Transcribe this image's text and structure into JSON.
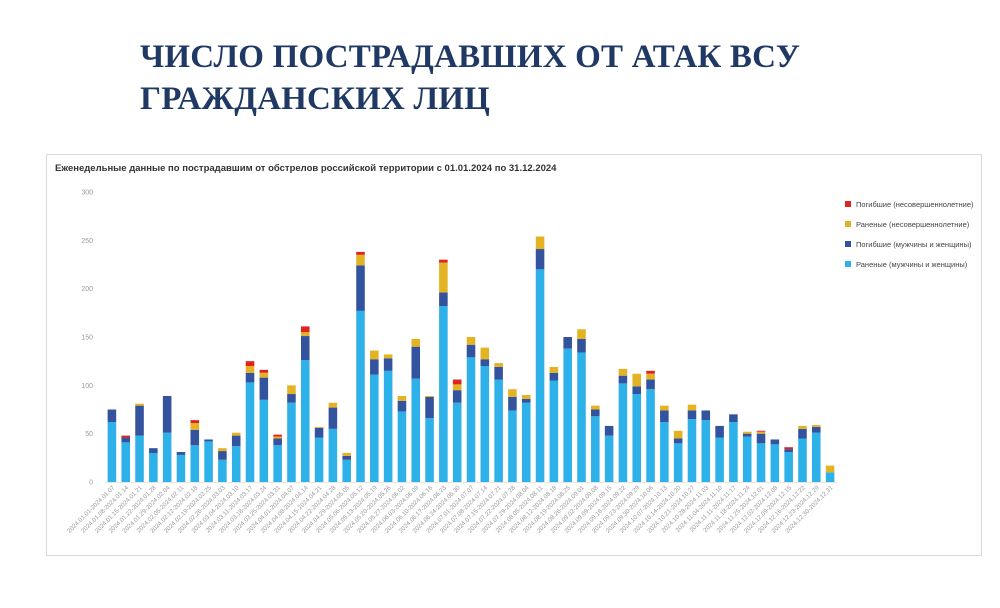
{
  "slide": {
    "title_line1": "ЧИСЛО ПОСТРАДАВШИХ ОТ АТАК ВСУ",
    "title_line2": "ГРАЖДАНСКИХ ЛИЦ"
  },
  "colors": {
    "title": "#1f3864",
    "wounded_adult": "#2eb1e8",
    "killed_adult": "#34539e",
    "wounded_minor": "#e3b324",
    "killed_minor": "#e02424"
  },
  "chart_data": {
    "type": "bar",
    "stacked": true,
    "title": "Еженедельные данные по пострадавшим от обстрелов российской территории с 01.01.2024 по 31.12.2024",
    "xlabel": "",
    "ylabel": "",
    "ylim": [
      0,
      300
    ],
    "yticks": [
      0,
      50,
      100,
      150,
      200,
      250,
      300
    ],
    "grid": false,
    "legend_position": "top-right",
    "categories": [
      "2024.01.01-2024.01.07",
      "2024.01.08-2024.01.14",
      "2024.01.15-2024.01.21",
      "2024.01.22-2024.01.28",
      "2024.01.29-2024.02.04",
      "2024.02.05-2024.02.11",
      "2024.02.12-2024.02.18",
      "2024.02.19-2024.02.25",
      "2024.02.26-2024.03.03",
      "2024.03.04-2024.03.10",
      "2024.03.11-2024.03.17",
      "2024.03.18-2024.03.24",
      "2024.03.25-2024.03.31",
      "2024.04.01-2024.04.07",
      "2024.04.08-2024.04.14",
      "2024.04.15-2024.04.21",
      "2024.04.22-2024.04.28",
      "2024.04.29-2024.05.05",
      "2024.05.06-2024.05.12",
      "2024.05.13-2024.05.19",
      "2024.05.20-2024.05.26",
      "2024.05.27-2024.06.02",
      "2024.06.03-2024.06.09",
      "2024.06.10-2024.06.16",
      "2024.06.17-2024.06.23",
      "2024.06.24-2024.06.30",
      "2024.07.01-2024.07.07",
      "2024.07.08-2024.07.14",
      "2024.07.15-2024.07.21",
      "2024.07.22-2024.07.28",
      "2024.07.29-2024.08.04",
      "2024.08.05-2024.08.11",
      "2024.08.12-2024.08.18",
      "2024.08.19-2024.08.25",
      "2024.08.26-2024.09.01",
      "2024.09.02-2024.09.08",
      "2024.09.09-2024.09.15",
      "2024.09.16-2024.09.22",
      "2024.09.23-2024.09.29",
      "2024.09.30-2024.10.06",
      "2024.10.07-2024.10.13",
      "2024.10.14-2024.10.20",
      "2024.10.21-2024.10.27",
      "2024.10.28-2024.11.03",
      "2024.11.04-2024.11.10",
      "2024.11.11-2024.11.17",
      "2024.11.18-2024.11.24",
      "2024.11.25-2024.12.01",
      "2024.12.02-2024.12.08",
      "2024.12.09-2024.12.15",
      "2024.12.16-2024.12.22",
      "2024.12.23-2024.12.29",
      "2024.12.30-2024.12.31"
    ],
    "series": [
      {
        "name": "Раненые (мужчины и женщины)",
        "color": "#2eb1e8",
        "values": [
          62,
          41,
          48,
          30,
          51,
          28,
          38,
          42,
          23,
          37,
          103,
          85,
          38,
          82,
          126,
          46,
          55,
          23,
          177,
          111,
          115,
          73,
          107,
          66,
          182,
          82,
          129,
          120,
          106,
          74,
          82,
          220,
          105,
          138,
          134,
          68,
          48,
          102,
          91,
          96,
          62,
          40,
          65,
          64,
          46,
          62,
          47,
          40,
          39,
          31,
          45,
          51,
          10
        ]
      },
      {
        "name": "Погибшие (мужчины и женщины)",
        "color": "#34539e",
        "values": [
          13,
          5,
          31,
          5,
          38,
          3,
          16,
          2,
          9,
          11,
          10,
          23,
          7,
          9,
          25,
          10,
          22,
          4,
          47,
          16,
          13,
          11,
          33,
          22,
          14,
          13,
          13,
          7,
          13,
          14,
          4,
          21,
          8,
          12,
          14,
          7,
          10,
          8,
          8,
          10,
          12,
          5,
          9,
          10,
          12,
          8,
          3,
          10,
          5,
          3,
          10,
          6,
          0
        ]
      },
      {
        "name": "Раненые (несовершеннолетние)",
        "color": "#e3b324",
        "values": [
          0,
          0,
          2,
          0,
          0,
          0,
          7,
          0,
          3,
          3,
          7,
          5,
          2,
          9,
          4,
          1,
          5,
          3,
          11,
          9,
          4,
          5,
          8,
          1,
          31,
          6,
          8,
          12,
          4,
          8,
          4,
          13,
          6,
          0,
          10,
          4,
          0,
          7,
          13,
          6,
          5,
          8,
          6,
          0,
          0,
          0,
          2,
          2,
          0,
          0,
          3,
          2,
          7
        ]
      },
      {
        "name": "Погибшие (несовершеннолетние)",
        "color": "#e02424",
        "values": [
          0,
          2,
          0,
          0,
          0,
          0,
          3,
          0,
          0,
          0,
          5,
          3,
          2,
          0,
          6,
          0,
          0,
          0,
          3,
          0,
          0,
          0,
          0,
          0,
          3,
          5,
          0,
          0,
          0,
          0,
          0,
          0,
          0,
          0,
          0,
          0,
          0,
          0,
          0,
          3,
          0,
          0,
          0,
          0,
          0,
          0,
          0,
          1,
          0,
          2,
          0,
          0,
          0
        ]
      }
    ]
  }
}
